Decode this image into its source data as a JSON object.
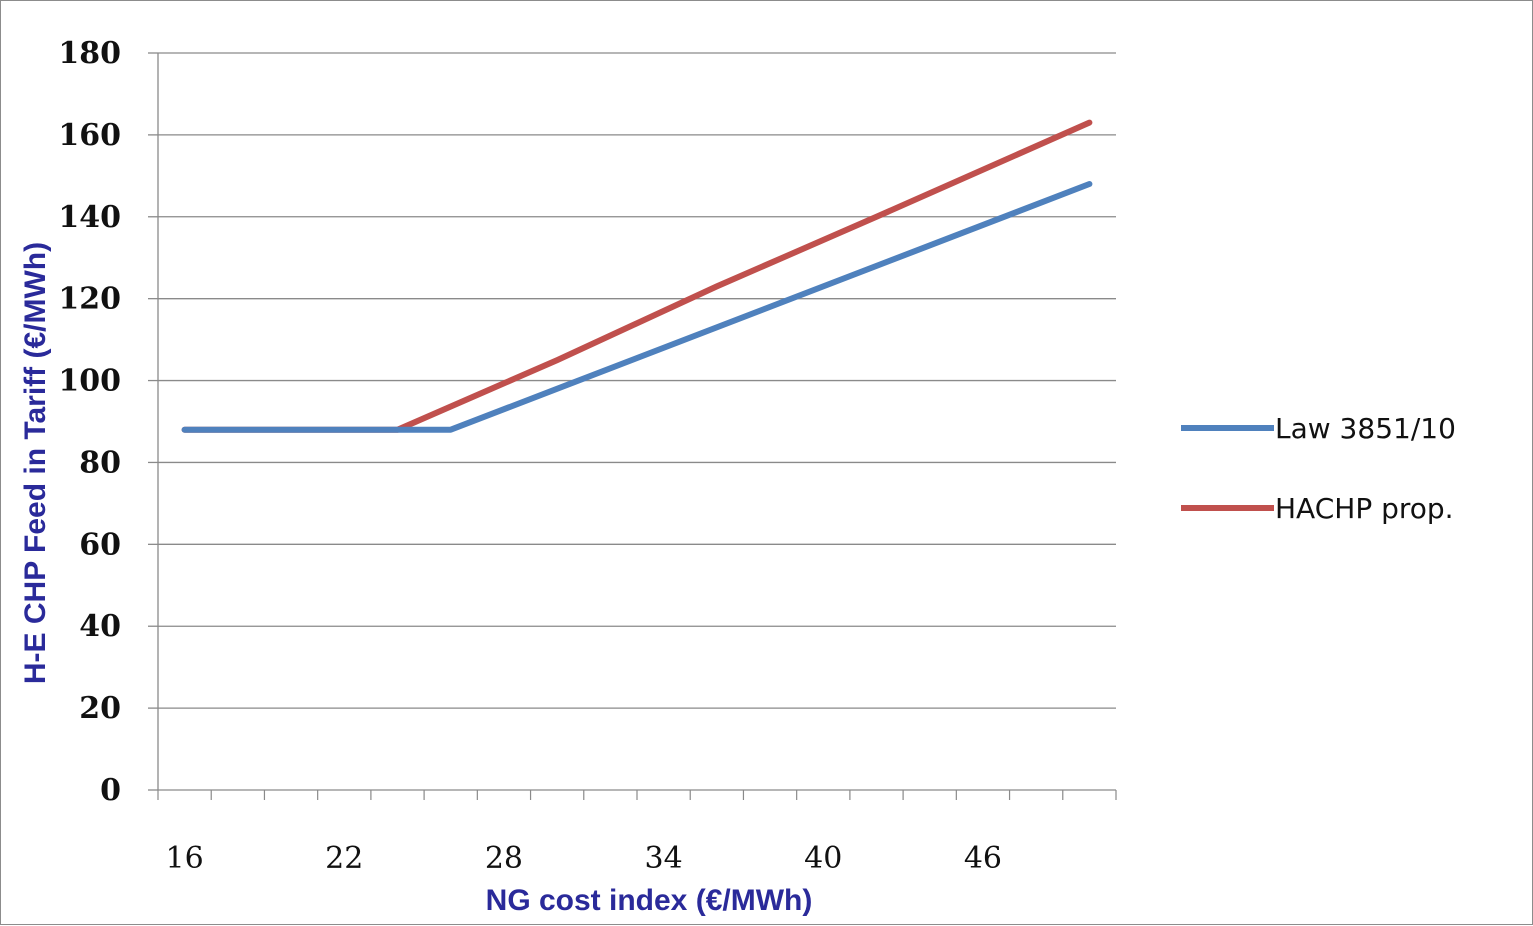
{
  "chart_data": {
    "type": "line",
    "xlabel": "NG cost index (€/MWh)",
    "ylabel": "H-E CHP Feed in Tariff (€/MWh)",
    "xlim": [
      15,
      51
    ],
    "ylim": [
      0,
      180
    ],
    "x_ticks": [
      16,
      22,
      28,
      34,
      40,
      46
    ],
    "y_ticks": [
      0,
      20,
      40,
      60,
      80,
      100,
      120,
      140,
      160,
      180
    ],
    "grid": true,
    "legend_position": "right",
    "series": [
      {
        "name": "Law 3851/10",
        "color": "#4f81bd",
        "x": [
          16,
          26,
          50
        ],
        "y": [
          88,
          88,
          148
        ]
      },
      {
        "name": "HACHP prop.",
        "color": "#c0504d",
        "x": [
          16,
          24,
          30,
          36,
          42,
          50
        ],
        "y": [
          88,
          88,
          105,
          123,
          140,
          163
        ]
      }
    ]
  }
}
